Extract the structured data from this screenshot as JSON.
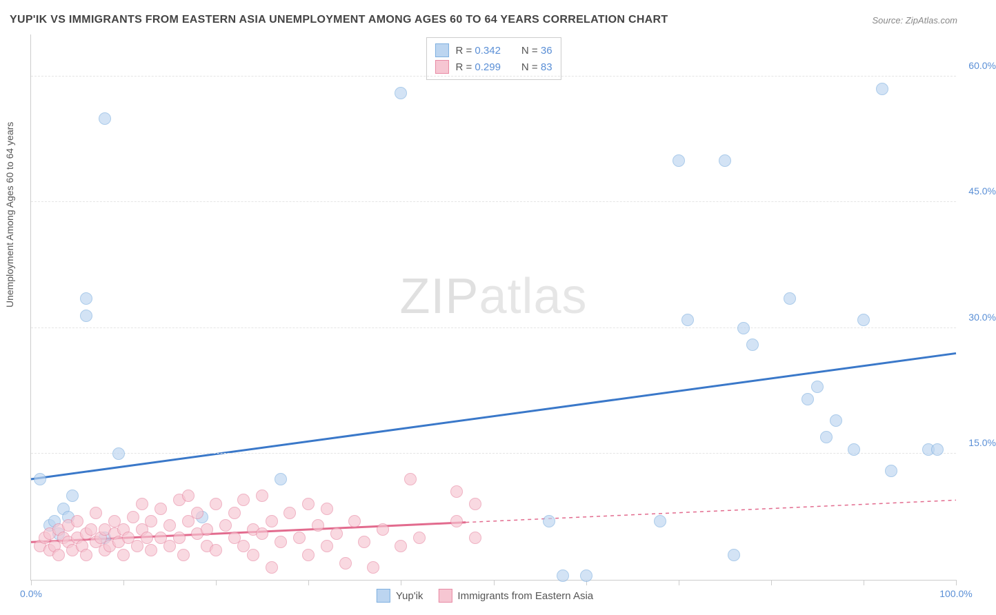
{
  "title": "YUP'IK VS IMMIGRANTS FROM EASTERN ASIA UNEMPLOYMENT AMONG AGES 60 TO 64 YEARS CORRELATION CHART",
  "source": "Source: ZipAtlas.com",
  "watermark": {
    "part1": "ZIP",
    "part2": "atlas"
  },
  "ylabel": "Unemployment Among Ages 60 to 64 years",
  "chart": {
    "type": "scatter",
    "background_color": "#ffffff",
    "grid_color": "#e4e4e4",
    "axis_color": "#cccccc",
    "xlim": [
      0,
      100
    ],
    "ylim": [
      0,
      65
    ],
    "yticks": [
      15,
      30,
      45,
      60
    ],
    "ytick_labels": [
      "15.0%",
      "30.0%",
      "45.0%",
      "60.0%"
    ],
    "xticks": [
      0,
      10,
      20,
      30,
      40,
      50,
      60,
      70,
      80,
      90,
      100
    ],
    "xtick_labels_shown": {
      "0": "0.0%",
      "100": "100.0%"
    },
    "label_color": "#5a8fd6",
    "label_fontsize": 14,
    "marker_radius": 9,
    "marker_stroke_width": 1.5,
    "trend_line_width": 3
  },
  "series": [
    {
      "name": "Yup'ik",
      "fill": "#bcd5f0",
      "stroke": "#7fb0e0",
      "fill_opacity": 0.65,
      "R": "0.342",
      "N": "36",
      "trend": {
        "x1": 0,
        "y1": 12.0,
        "x2": 100,
        "y2": 27.0,
        "color": "#3a78c9",
        "dash_after_x": null
      },
      "points": [
        [
          1,
          12
        ],
        [
          2,
          6.5
        ],
        [
          2.5,
          7
        ],
        [
          3,
          5.5
        ],
        [
          3.5,
          8.5
        ],
        [
          4,
          7.5
        ],
        [
          4.5,
          10
        ],
        [
          6,
          33.5
        ],
        [
          6,
          31.5
        ],
        [
          8,
          55
        ],
        [
          8,
          5
        ],
        [
          9.5,
          15
        ],
        [
          18.5,
          7.5
        ],
        [
          27,
          12
        ],
        [
          40,
          58
        ],
        [
          56,
          7
        ],
        [
          57.5,
          0.5
        ],
        [
          60,
          0.5
        ],
        [
          68,
          7
        ],
        [
          70,
          50
        ],
        [
          71,
          31
        ],
        [
          75,
          50
        ],
        [
          76,
          3
        ],
        [
          77,
          30
        ],
        [
          78,
          28
        ],
        [
          82,
          33.5
        ],
        [
          84,
          21.5
        ],
        [
          85,
          23
        ],
        [
          86,
          17
        ],
        [
          87,
          19
        ],
        [
          89,
          15.5
        ],
        [
          90,
          31
        ],
        [
          92,
          58.5
        ],
        [
          93,
          13
        ],
        [
          97,
          15.5
        ],
        [
          98,
          15.5
        ]
      ]
    },
    {
      "name": "Immigrants from Eastern Asia",
      "fill": "#f6c6d2",
      "stroke": "#e88aa4",
      "fill_opacity": 0.65,
      "R": "0.299",
      "N": "83",
      "trend": {
        "x1": 0,
        "y1": 4.5,
        "x2": 100,
        "y2": 9.5,
        "color": "#e26b8e",
        "dash_after_x": 47
      },
      "points": [
        [
          1,
          4
        ],
        [
          1.5,
          5
        ],
        [
          2,
          3.5
        ],
        [
          2,
          5.5
        ],
        [
          2.5,
          4
        ],
        [
          3,
          6
        ],
        [
          3,
          3
        ],
        [
          3.5,
          5
        ],
        [
          4,
          4.5
        ],
        [
          4,
          6.5
        ],
        [
          4.5,
          3.5
        ],
        [
          5,
          5
        ],
        [
          5,
          7
        ],
        [
          5.5,
          4
        ],
        [
          6,
          5.5
        ],
        [
          6,
          3
        ],
        [
          6.5,
          6
        ],
        [
          7,
          4.5
        ],
        [
          7,
          8
        ],
        [
          7.5,
          5
        ],
        [
          8,
          3.5
        ],
        [
          8,
          6
        ],
        [
          8.5,
          4
        ],
        [
          9,
          5.5
        ],
        [
          9,
          7
        ],
        [
          9.5,
          4.5
        ],
        [
          10,
          6
        ],
        [
          10,
          3
        ],
        [
          10.5,
          5
        ],
        [
          11,
          7.5
        ],
        [
          11.5,
          4
        ],
        [
          12,
          6
        ],
        [
          12,
          9
        ],
        [
          12.5,
          5
        ],
        [
          13,
          3.5
        ],
        [
          13,
          7
        ],
        [
          14,
          5
        ],
        [
          14,
          8.5
        ],
        [
          15,
          4
        ],
        [
          15,
          6.5
        ],
        [
          16,
          9.5
        ],
        [
          16,
          5
        ],
        [
          16.5,
          3
        ],
        [
          17,
          7
        ],
        [
          17,
          10
        ],
        [
          18,
          5.5
        ],
        [
          18,
          8
        ],
        [
          19,
          4
        ],
        [
          19,
          6
        ],
        [
          20,
          9
        ],
        [
          20,
          3.5
        ],
        [
          21,
          6.5
        ],
        [
          22,
          5
        ],
        [
          22,
          8
        ],
        [
          23,
          4
        ],
        [
          23,
          9.5
        ],
        [
          24,
          6
        ],
        [
          24,
          3
        ],
        [
          25,
          10
        ],
        [
          25,
          5.5
        ],
        [
          26,
          7
        ],
        [
          26,
          1.5
        ],
        [
          27,
          4.5
        ],
        [
          28,
          8
        ],
        [
          29,
          5
        ],
        [
          30,
          9
        ],
        [
          30,
          3
        ],
        [
          31,
          6.5
        ],
        [
          32,
          4
        ],
        [
          32,
          8.5
        ],
        [
          33,
          5.5
        ],
        [
          34,
          2
        ],
        [
          35,
          7
        ],
        [
          36,
          4.5
        ],
        [
          37,
          1.5
        ],
        [
          38,
          6
        ],
        [
          40,
          4
        ],
        [
          41,
          12
        ],
        [
          42,
          5
        ],
        [
          46,
          7
        ],
        [
          46,
          10.5
        ],
        [
          48,
          5
        ],
        [
          48,
          9
        ]
      ]
    }
  ],
  "stats_legend": {
    "R_label": "R =",
    "N_label": "N ="
  },
  "bottom_legend": [
    {
      "label": "Yup'ik",
      "fill": "#bcd5f0",
      "stroke": "#7fb0e0"
    },
    {
      "label": "Immigrants from Eastern Asia",
      "fill": "#f6c6d2",
      "stroke": "#e88aa4"
    }
  ]
}
